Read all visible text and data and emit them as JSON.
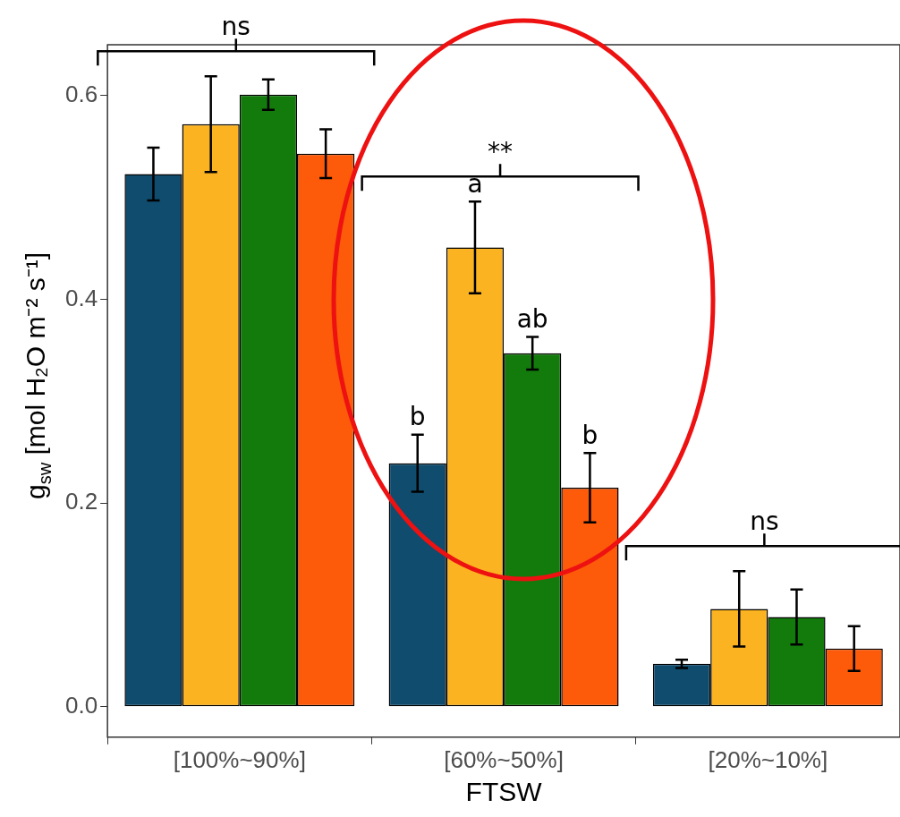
{
  "chart_data": {
    "type": "bar",
    "xlabel": "FTSW",
    "ylabel": "g$_{sw}$ [mol H₂O m⁻² s⁻¹]",
    "categories": [
      "[100%~90%]",
      "[60%~50%]",
      "[20%~10%]"
    ],
    "ylim": [
      -0.03,
      0.65
    ],
    "yticks": [
      {
        "value": 0,
        "label": "0.0"
      },
      0.2,
      0.4,
      0.6
    ],
    "grid": false,
    "legend": false,
    "series": [
      {
        "color": "#0f4c6e",
        "values": [
          0.523,
          0.239,
          0.042
        ],
        "errors": [
          0.026,
          0.028,
          0.004
        ]
      },
      {
        "color": "#fbb321",
        "values": [
          0.572,
          0.451,
          0.096
        ],
        "errors": [
          0.047,
          0.045,
          0.037
        ]
      },
      {
        "color": "#137a0c",
        "values": [
          0.601,
          0.347,
          0.088
        ],
        "errors": [
          0.015,
          0.016,
          0.027
        ]
      },
      {
        "color": "#fd5a0a",
        "values": [
          0.543,
          0.215,
          0.057
        ],
        "errors": [
          0.024,
          0.034,
          0.022
        ]
      }
    ],
    "annotations": [
      "ns",
      "**",
      "ns",
      "b",
      "a",
      "ab",
      "b"
    ]
  }
}
